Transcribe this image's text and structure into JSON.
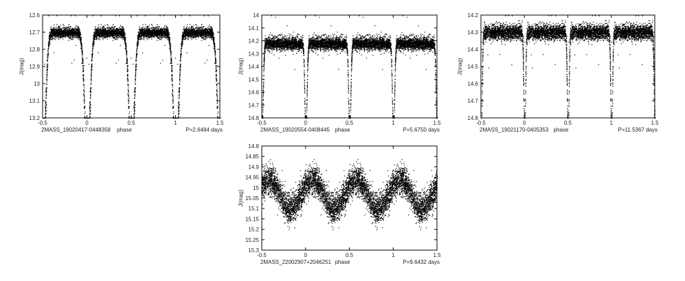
{
  "chart_data": [
    {
      "type": "scatter",
      "xlabel": "phase",
      "ylabel": "J(mag)",
      "xlim": [
        -0.5,
        1.5
      ],
      "ylim": [
        12.6,
        13.2
      ],
      "y_inverted": true,
      "xticks": [
        "-0.5",
        "0",
        "0.5",
        "1",
        "1.5"
      ],
      "yticks": [
        "12.6",
        "12.7",
        "12.8",
        "12.9",
        "13",
        "13.1",
        "13.2"
      ],
      "star": "2MASS_19020417-0448358",
      "period": "P=2.6484 days",
      "baseline": 12.7,
      "scatter": 0.028,
      "dips": [
        {
          "phase": 0,
          "depth": 13.19,
          "width": 0.03
        },
        {
          "phase": 0.5,
          "depth": 13.17,
          "width": 0.03
        }
      ],
      "sine_amplitude": 0,
      "points_per_phase": 1800
    },
    {
      "type": "scatter",
      "xlabel": "phase",
      "ylabel": "J(mag)",
      "xlim": [
        -0.5,
        1.5
      ],
      "ylim": [
        14.0,
        14.8
      ],
      "y_inverted": true,
      "xticks": [
        "-0.5",
        "0",
        "0.5",
        "1",
        "1.5"
      ],
      "yticks": [
        "14",
        "14.1",
        "14.2",
        "14.3",
        "14.4",
        "14.5",
        "14.6",
        "14.7",
        "14.8"
      ],
      "star": "2MASS_19020554-0408445",
      "period": "P=5.6750 days",
      "baseline": 14.22,
      "scatter": 0.045,
      "dips": [
        {
          "phase": 0,
          "depth": 14.65,
          "width": 0.012
        },
        {
          "phase": 0.5,
          "depth": 14.72,
          "width": 0.012
        }
      ],
      "sine_amplitude": 0,
      "points_per_phase": 1800
    },
    {
      "type": "scatter",
      "xlabel": "phase",
      "ylabel": "J(mag)",
      "xlim": [
        -0.5,
        1.5
      ],
      "ylim": [
        14.2,
        14.8
      ],
      "y_inverted": true,
      "xticks": [
        "-0.5",
        "0",
        "0.5",
        "1",
        "1.5"
      ],
      "yticks": [
        "14.2",
        "14.3",
        "14.4",
        "14.5",
        "14.6",
        "14.7",
        "14.8"
      ],
      "star": "2MASS_19021170-0405353",
      "period": "P=11.5367 days",
      "baseline": 14.3,
      "scatter": 0.04,
      "dips": [
        {
          "phase": 0,
          "depth": 14.7,
          "width": 0.01
        },
        {
          "phase": 0.5,
          "depth": 14.68,
          "width": 0.01
        }
      ],
      "sine_amplitude": 0,
      "points_per_phase": 1800
    },
    {
      "type": "scatter",
      "xlabel": "phase",
      "ylabel": "J(mag)",
      "xlim": [
        -0.5,
        1.5
      ],
      "ylim": [
        14.8,
        15.3
      ],
      "y_inverted": true,
      "xticks": [
        "-0.5",
        "0",
        "0.5",
        "1",
        "1.5"
      ],
      "yticks": [
        "14.8",
        "14.85",
        "14.9",
        "14.95",
        "15",
        "15.05",
        "15.1",
        "15.15",
        "15.2",
        "15.25",
        "15.3"
      ],
      "star": "2MASS_22002907+2046251",
      "period": "P=9.6432 days",
      "baseline": 15.03,
      "scatter": 0.05,
      "dips": [],
      "sine_amplitude": 0.07,
      "points_per_phase": 1800
    }
  ]
}
